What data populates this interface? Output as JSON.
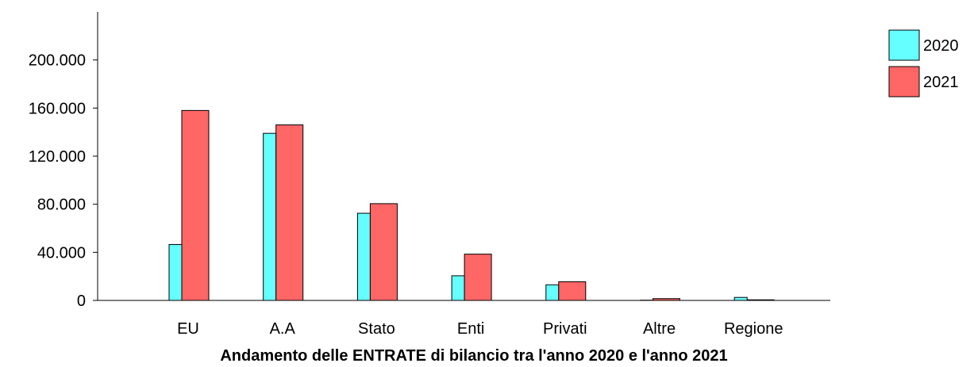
{
  "chart_data": {
    "type": "bar",
    "title": "Andamento delle ENTRATE di bilancio tra l'anno 2020 e l'anno 2021",
    "xlabel": "",
    "ylabel": "",
    "categories": [
      "EU",
      "A.A",
      "Stato",
      "Enti",
      "Privati",
      "Altre",
      "Regione"
    ],
    "series": [
      {
        "name": "2020",
        "color": "#66FFFF",
        "values": [
          46500,
          139000,
          72500,
          20500,
          13000,
          200,
          2500
        ]
      },
      {
        "name": "2021",
        "color": "#FF6666",
        "values": [
          158000,
          146000,
          80500,
          38500,
          15500,
          1500,
          500
        ]
      }
    ],
    "ylim": [
      0,
      240000
    ],
    "yticks": [
      0,
      40000,
      80000,
      120000,
      160000,
      200000
    ],
    "ytick_labels": [
      "0",
      "40.000",
      "80.000",
      "120.000",
      "160.000",
      "200.000"
    ],
    "grid": false,
    "legend_position": "top-right"
  }
}
